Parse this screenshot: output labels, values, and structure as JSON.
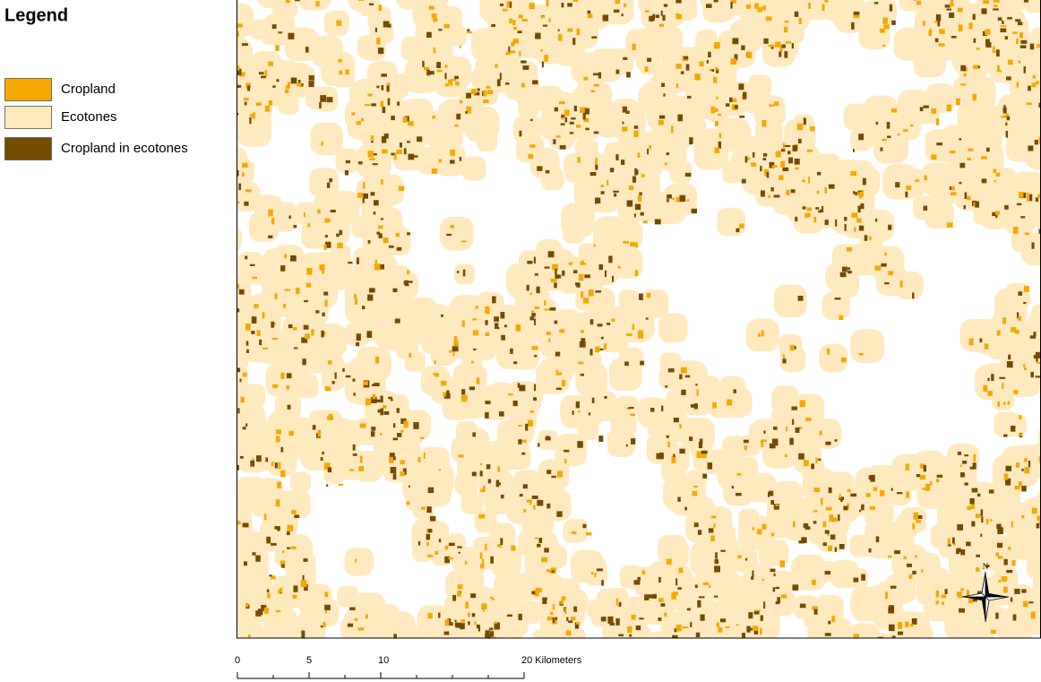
{
  "legend": {
    "title": "Legend",
    "items": [
      {
        "label": "Cropland",
        "color": "#f5a800"
      },
      {
        "label": "Ecotones",
        "color": "#ffe9be"
      },
      {
        "label": "Cropland in ecotones",
        "color": "#734c00"
      }
    ]
  },
  "scale_bar": {
    "ticks": [
      0,
      5,
      10,
      {
        "value": 20,
        "label": "20 Kilometers"
      }
    ]
  },
  "north_arrow": {
    "label": "N"
  }
}
